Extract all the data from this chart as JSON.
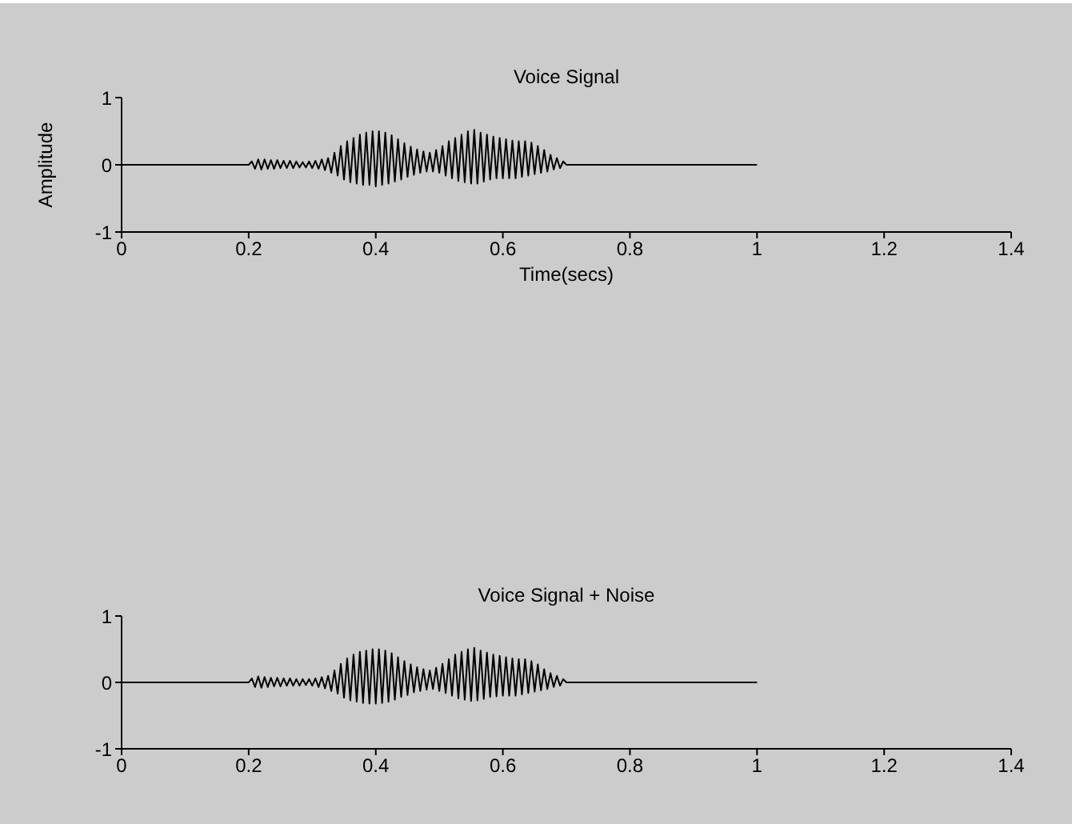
{
  "chart_data": [
    {
      "type": "line",
      "title": "Voice Signal",
      "xlabel": "Time(secs)",
      "ylabel": "Amplitude",
      "xlim": [
        0,
        1.4
      ],
      "xticks": [
        0,
        0.2,
        0.4,
        0.6,
        0.8,
        1,
        1.2,
        1.4
      ],
      "ylim": [
        -1,
        1
      ],
      "yticks": [
        -1,
        0,
        1
      ],
      "grid": false,
      "legend": false,
      "marker": "none",
      "series": [
        {
          "color": "#000000",
          "x": [
            0,
            0.2,
            0.205,
            0.21,
            0.215,
            0.22,
            0.225,
            0.23,
            0.235,
            0.24,
            0.245,
            0.25,
            0.255,
            0.26,
            0.265,
            0.27,
            0.275,
            0.28,
            0.285,
            0.29,
            0.295,
            0.3,
            0.305,
            0.31,
            0.315,
            0.32,
            0.325,
            0.33,
            0.335,
            0.34,
            0.345,
            0.35,
            0.355,
            0.36,
            0.365,
            0.37,
            0.375,
            0.38,
            0.385,
            0.39,
            0.395,
            0.4,
            0.405,
            0.41,
            0.415,
            0.42,
            0.425,
            0.43,
            0.435,
            0.44,
            0.445,
            0.45,
            0.455,
            0.46,
            0.465,
            0.47,
            0.475,
            0.48,
            0.485,
            0.49,
            0.495,
            0.5,
            0.505,
            0.51,
            0.515,
            0.52,
            0.525,
            0.53,
            0.535,
            0.54,
            0.545,
            0.55,
            0.555,
            0.56,
            0.565,
            0.57,
            0.575,
            0.58,
            0.585,
            0.59,
            0.595,
            0.6,
            0.605,
            0.61,
            0.615,
            0.62,
            0.625,
            0.63,
            0.635,
            0.64,
            0.645,
            0.65,
            0.655,
            0.66,
            0.665,
            0.67,
            0.675,
            0.68,
            0.685,
            0.69,
            0.695,
            0.7,
            1
          ],
          "values": [
            0,
            0,
            0.05,
            -0.06,
            0.08,
            -0.07,
            0.08,
            -0.06,
            0.07,
            -0.06,
            0.07,
            -0.05,
            0.06,
            -0.05,
            0.06,
            -0.05,
            0.05,
            -0.04,
            0.04,
            -0.04,
            0.05,
            -0.05,
            0.06,
            -0.06,
            0.08,
            -0.08,
            0.1,
            -0.12,
            0.18,
            -0.16,
            0.28,
            -0.22,
            0.35,
            -0.26,
            0.4,
            -0.28,
            0.45,
            -0.3,
            0.48,
            -0.3,
            0.5,
            -0.32,
            0.5,
            -0.3,
            0.48,
            -0.28,
            0.44,
            -0.25,
            0.38,
            -0.22,
            0.32,
            -0.18,
            0.27,
            -0.15,
            0.23,
            -0.12,
            0.2,
            -0.1,
            0.18,
            -0.1,
            0.22,
            -0.12,
            0.28,
            -0.16,
            0.35,
            -0.2,
            0.4,
            -0.24,
            0.45,
            -0.26,
            0.5,
            -0.28,
            0.52,
            -0.28,
            0.48,
            -0.25,
            0.45,
            -0.22,
            0.42,
            -0.2,
            0.4,
            -0.2,
            0.38,
            -0.2,
            0.36,
            -0.2,
            0.35,
            -0.18,
            0.35,
            -0.16,
            0.33,
            -0.14,
            0.28,
            -0.12,
            0.22,
            -0.1,
            0.15,
            -0.07,
            0.1,
            -0.05,
            0.05,
            0,
            0
          ]
        }
      ]
    },
    {
      "type": "line",
      "title": "Voice Signal + Noise",
      "xlim": [
        0,
        1.4
      ],
      "xticks": [
        0,
        0.2,
        0.4,
        0.6,
        0.8,
        1,
        1.2,
        1.4
      ],
      "ylim": [
        -1,
        1
      ],
      "yticks": [
        -1,
        0,
        1
      ],
      "grid": false,
      "legend": false,
      "marker": "none",
      "series": [
        {
          "color": "#000000",
          "x": [
            0,
            0.2,
            0.205,
            0.21,
            0.215,
            0.22,
            0.225,
            0.23,
            0.235,
            0.24,
            0.245,
            0.25,
            0.255,
            0.26,
            0.265,
            0.27,
            0.275,
            0.28,
            0.285,
            0.29,
            0.295,
            0.3,
            0.305,
            0.31,
            0.315,
            0.32,
            0.325,
            0.33,
            0.335,
            0.34,
            0.345,
            0.35,
            0.355,
            0.36,
            0.365,
            0.37,
            0.375,
            0.38,
            0.385,
            0.39,
            0.395,
            0.4,
            0.405,
            0.41,
            0.415,
            0.42,
            0.425,
            0.43,
            0.435,
            0.44,
            0.445,
            0.45,
            0.455,
            0.46,
            0.465,
            0.47,
            0.475,
            0.48,
            0.485,
            0.49,
            0.495,
            0.5,
            0.505,
            0.51,
            0.515,
            0.52,
            0.525,
            0.53,
            0.535,
            0.54,
            0.545,
            0.55,
            0.555,
            0.56,
            0.565,
            0.57,
            0.575,
            0.58,
            0.585,
            0.59,
            0.595,
            0.6,
            0.605,
            0.61,
            0.615,
            0.62,
            0.625,
            0.63,
            0.635,
            0.64,
            0.645,
            0.65,
            0.655,
            0.66,
            0.665,
            0.67,
            0.675,
            0.68,
            0.685,
            0.69,
            0.695,
            0.7,
            1
          ],
          "values": [
            0,
            0,
            0.06,
            -0.07,
            0.09,
            -0.08,
            0.08,
            -0.07,
            0.07,
            -0.06,
            0.07,
            -0.06,
            0.06,
            -0.05,
            0.06,
            -0.05,
            0.05,
            -0.05,
            0.05,
            -0.04,
            0.05,
            -0.05,
            0.06,
            -0.07,
            0.08,
            -0.09,
            0.1,
            -0.13,
            0.18,
            -0.17,
            0.28,
            -0.23,
            0.36,
            -0.27,
            0.42,
            -0.29,
            0.46,
            -0.31,
            0.48,
            -0.32,
            0.5,
            -0.32,
            0.5,
            -0.31,
            0.48,
            -0.29,
            0.44,
            -0.26,
            0.38,
            -0.22,
            0.32,
            -0.19,
            0.27,
            -0.15,
            0.23,
            -0.13,
            0.2,
            -0.11,
            0.18,
            -0.1,
            0.22,
            -0.13,
            0.28,
            -0.16,
            0.35,
            -0.2,
            0.42,
            -0.24,
            0.46,
            -0.26,
            0.5,
            -0.28,
            0.52,
            -0.27,
            0.48,
            -0.25,
            0.45,
            -0.22,
            0.42,
            -0.21,
            0.4,
            -0.2,
            0.38,
            -0.2,
            0.36,
            -0.2,
            0.35,
            -0.18,
            0.35,
            -0.16,
            0.32,
            -0.14,
            0.27,
            -0.12,
            0.2,
            -0.1,
            0.14,
            -0.07,
            0.1,
            -0.05,
            0.05,
            0,
            0
          ]
        }
      ]
    }
  ]
}
